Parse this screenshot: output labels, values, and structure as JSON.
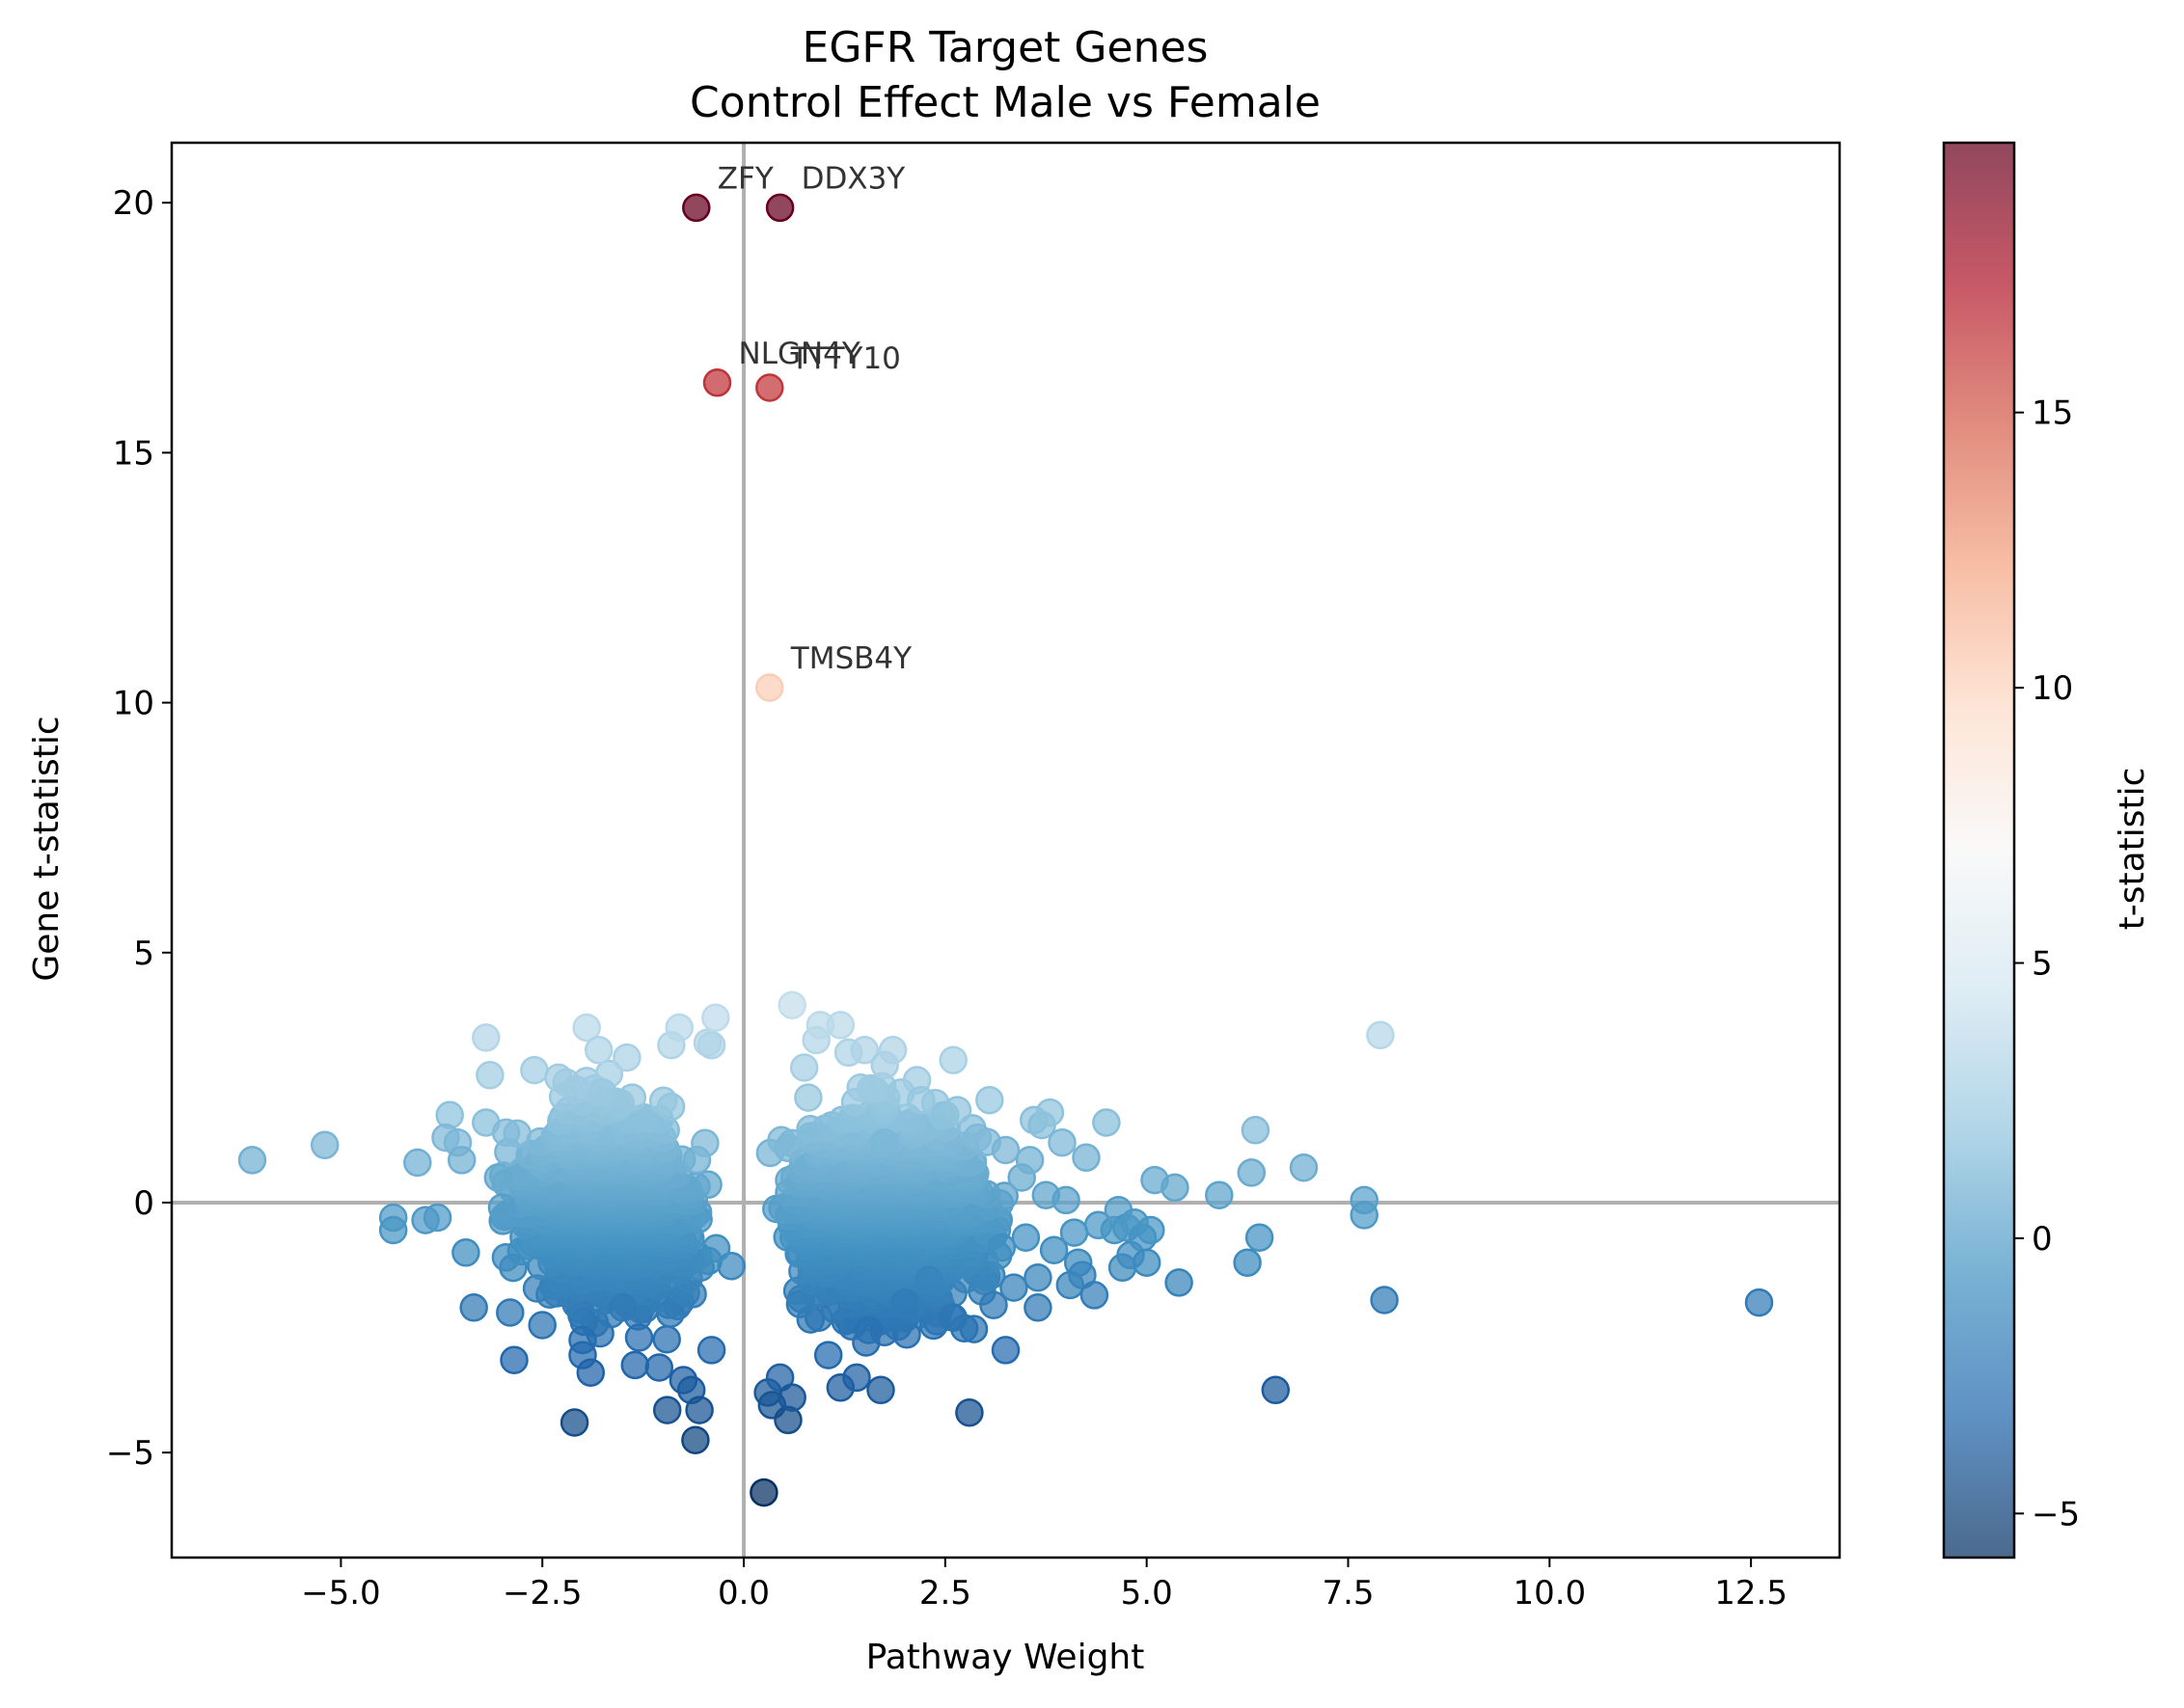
{
  "chart_data": {
    "type": "scatter",
    "title": "EGFR Target Genes",
    "subtitle": "Control Effect Male vs Female",
    "xlabel": "Pathway Weight",
    "ylabel": "Gene t-statistic",
    "colorbar_label": "t-statistic",
    "xlim": [
      -7.1,
      13.6
    ],
    "ylim": [
      -7.1,
      21.2
    ],
    "xticks": [
      -5.0,
      -2.5,
      0.0,
      2.5,
      5.0,
      7.5,
      10.0,
      12.5
    ],
    "xtick_labels": [
      "−5.0",
      "−2.5",
      "0.0",
      "2.5",
      "5.0",
      "7.5",
      "10.0",
      "12.5"
    ],
    "yticks": [
      -5,
      0,
      5,
      10,
      15,
      20
    ],
    "ytick_labels": [
      "−5",
      "0",
      "5",
      "10",
      "15",
      "20"
    ],
    "colorbar_ticks": [
      -5,
      0,
      5,
      10,
      15
    ],
    "colorbar_tick_labels": [
      "−5",
      "0",
      "5",
      "10",
      "15"
    ],
    "color_range": [
      -5.8,
      19.9
    ],
    "colormap": "RdBu_r",
    "reference_lines": {
      "x": 0,
      "y": 0,
      "color": "#b0b0b0"
    },
    "grid": false,
    "labeled_points": [
      {
        "label": "ZFY",
        "x": -0.59,
        "y": 19.9
      },
      {
        "label": "DDX3Y",
        "x": 0.45,
        "y": 19.9
      },
      {
        "label": "NLGN4Y",
        "x": -0.33,
        "y": 16.4
      },
      {
        "label": "TTTY10",
        "x": 0.32,
        "y": 16.3
      },
      {
        "label": "TMSB4Y",
        "x": 0.32,
        "y": 10.3
      }
    ],
    "points": [
      [
        -6.1,
        0.85
      ],
      [
        -5.2,
        1.15
      ],
      [
        -4.35,
        -0.3
      ],
      [
        -4.35,
        -0.55
      ],
      [
        -4.05,
        0.8
      ],
      [
        -3.95,
        -0.35
      ],
      [
        -3.8,
        -0.3
      ],
      [
        -3.65,
        1.75
      ],
      [
        -3.7,
        1.3
      ],
      [
        -3.55,
        1.2
      ],
      [
        -3.5,
        0.85
      ],
      [
        -3.45,
        -1.0
      ],
      [
        -3.35,
        -2.1
      ],
      [
        -3.2,
        3.3
      ],
      [
        -3.2,
        1.6
      ],
      [
        -3.15,
        2.55
      ],
      [
        -3.05,
        0.5
      ],
      [
        -3.0,
        -0.1
      ],
      [
        -2.95,
        1.4
      ],
      [
        -2.9,
        -2.2
      ],
      [
        -2.85,
        -3.15
      ],
      [
        -2.6,
        2.65
      ],
      [
        -2.5,
        -2.45
      ],
      [
        -2.3,
        2.5
      ],
      [
        -2.2,
        2.4
      ],
      [
        -2.1,
        -4.4
      ],
      [
        -2.0,
        -2.75
      ],
      [
        -2.0,
        -3.05
      ],
      [
        -1.9,
        -3.4
      ],
      [
        -1.95,
        3.5
      ],
      [
        -1.8,
        3.05
      ],
      [
        -1.75,
        2.2
      ],
      [
        -1.5,
        -2.1
      ],
      [
        -1.45,
        2.9
      ],
      [
        -1.35,
        -3.25
      ],
      [
        -1.3,
        -2.7
      ],
      [
        -1.05,
        -3.3
      ],
      [
        -0.95,
        -4.15
      ],
      [
        -0.9,
        3.15
      ],
      [
        -0.8,
        3.5
      ],
      [
        -0.75,
        -3.55
      ],
      [
        -0.65,
        -3.75
      ],
      [
        -0.55,
        -4.15
      ],
      [
        -0.6,
        -4.75
      ],
      [
        -0.45,
        3.2
      ],
      [
        -0.4,
        3.15
      ],
      [
        -0.4,
        -2.95
      ],
      [
        -0.35,
        3.7
      ],
      [
        0.25,
        -5.8
      ],
      [
        0.3,
        -3.8
      ],
      [
        0.35,
        -4.05
      ],
      [
        0.45,
        -3.5
      ],
      [
        0.55,
        -4.35
      ],
      [
        0.6,
        -3.9
      ],
      [
        0.6,
        3.95
      ],
      [
        0.75,
        2.7
      ],
      [
        0.9,
        3.25
      ],
      [
        0.95,
        3.55
      ],
      [
        1.05,
        -3.05
      ],
      [
        1.2,
        3.55
      ],
      [
        1.2,
        -3.7
      ],
      [
        1.3,
        3.0
      ],
      [
        1.4,
        -3.5
      ],
      [
        1.45,
        2.3
      ],
      [
        1.5,
        3.05
      ],
      [
        1.55,
        -2.55
      ],
      [
        1.7,
        -3.75
      ],
      [
        1.75,
        2.75
      ],
      [
        1.75,
        1.2
      ],
      [
        1.85,
        3.05
      ],
      [
        1.95,
        2.2
      ],
      [
        2.0,
        -2.0
      ],
      [
        2.15,
        2.45
      ],
      [
        2.2,
        2.05
      ],
      [
        2.3,
        -1.55
      ],
      [
        2.5,
        1.75
      ],
      [
        2.6,
        2.85
      ],
      [
        2.6,
        -2.3
      ],
      [
        2.65,
        1.85
      ],
      [
        2.8,
        -4.2
      ],
      [
        2.9,
        1.3
      ],
      [
        3.05,
        2.05
      ],
      [
        3.1,
        -2.05
      ],
      [
        3.2,
        -0.9
      ],
      [
        3.25,
        1.05
      ],
      [
        3.25,
        -2.95
      ],
      [
        3.35,
        -1.7
      ],
      [
        3.45,
        0.5
      ],
      [
        3.5,
        -0.7
      ],
      [
        3.55,
        0.85
      ],
      [
        3.6,
        1.65
      ],
      [
        3.65,
        -1.5
      ],
      [
        3.65,
        -2.1
      ],
      [
        3.7,
        1.55
      ],
      [
        3.75,
        0.15
      ],
      [
        3.8,
        1.8
      ],
      [
        3.85,
        -0.95
      ],
      [
        3.95,
        1.2
      ],
      [
        4.0,
        0.05
      ],
      [
        4.05,
        -1.65
      ],
      [
        4.1,
        -0.6
      ],
      [
        4.15,
        -1.2
      ],
      [
        4.2,
        -1.45
      ],
      [
        4.25,
        0.9
      ],
      [
        4.35,
        -1.85
      ],
      [
        4.4,
        -0.45
      ],
      [
        4.5,
        1.6
      ],
      [
        4.6,
        -0.55
      ],
      [
        4.65,
        -0.15
      ],
      [
        4.7,
        -1.3
      ],
      [
        4.75,
        -0.5
      ],
      [
        4.8,
        -1.05
      ],
      [
        4.85,
        -0.4
      ],
      [
        4.95,
        -0.7
      ],
      [
        5.0,
        -1.2
      ],
      [
        5.05,
        -0.55
      ],
      [
        5.1,
        0.45
      ],
      [
        5.35,
        0.3
      ],
      [
        5.4,
        -1.6
      ],
      [
        5.9,
        0.15
      ],
      [
        6.25,
        -1.2
      ],
      [
        6.3,
        0.6
      ],
      [
        6.35,
        1.45
      ],
      [
        6.4,
        -0.7
      ],
      [
        6.6,
        -3.75
      ],
      [
        6.95,
        0.7
      ],
      [
        7.7,
        0.05
      ],
      [
        7.7,
        -0.25
      ],
      [
        7.9,
        3.35
      ],
      [
        7.95,
        -1.95
      ],
      [
        12.6,
        -2.0
      ]
    ],
    "dense_cluster": {
      "left_lobe": {
        "x_range": [
          -3.3,
          -0.05
        ],
        "y_range": [
          -2.9,
          2.7
        ]
      },
      "right_lobe": {
        "x_range": [
          0.05,
          3.6
        ],
        "y_range": [
          -3.4,
          2.9
        ]
      },
      "note": "thousands of overlapping points forming two lobes around x = 0"
    }
  }
}
